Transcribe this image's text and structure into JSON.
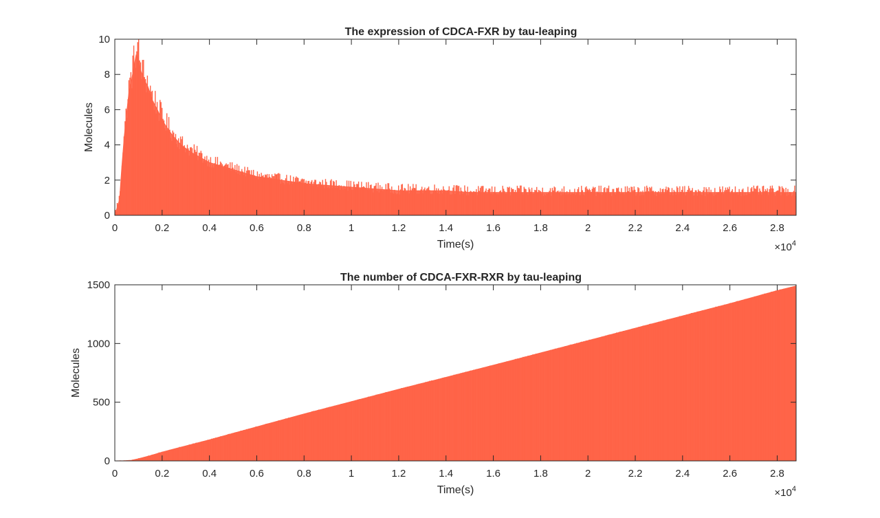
{
  "chart_data": [
    {
      "type": "line",
      "title": "The expression of CDCA-FXR by tau-leaping",
      "xlabel": "Time(s)",
      "ylabel": "Molecules",
      "xlim": [
        0,
        28800
      ],
      "ylim": [
        0,
        10
      ],
      "xticks": [
        0,
        2000,
        4000,
        6000,
        8000,
        10000,
        12000,
        14000,
        16000,
        18000,
        20000,
        22000,
        24000,
        26000,
        28000
      ],
      "xtick_labels": [
        "0",
        "0.2",
        "0.4",
        "0.6",
        "0.8",
        "1",
        "1.2",
        "1.4",
        "1.6",
        "1.8",
        "2",
        "2.2",
        "2.4",
        "2.6",
        "2.8"
      ],
      "yticks": [
        0,
        2,
        4,
        6,
        8,
        10
      ],
      "ytick_labels": [
        "0",
        "2",
        "4",
        "6",
        "8",
        "10"
      ],
      "x_exponent_base": "×10",
      "x_exponent_power": "4",
      "color": "#FF6347",
      "series": [
        {
          "name": "CDCA-FXR",
          "x": [
            0,
            200,
            300,
            400,
            500,
            600,
            700,
            800,
            900,
            1000,
            1100,
            1200,
            1400,
            1600,
            1800,
            2000,
            2400,
            2800,
            3200,
            3600,
            4000,
            4500,
            5000,
            5500,
            6000,
            6500,
            7000,
            8000,
            9000,
            10000,
            11000,
            12000,
            13000,
            14000,
            15000,
            16000,
            17000,
            18000,
            19000,
            20000,
            21000,
            22000,
            23000,
            24000,
            25000,
            26000,
            27000,
            28000,
            28800
          ],
          "y": [
            0,
            0.9,
            2.8,
            4.5,
            5.8,
            7.0,
            7.6,
            8.4,
            9.1,
            8.9,
            8.2,
            7.8,
            7.3,
            6.5,
            6.0,
            5.4,
            4.6,
            4.0,
            3.6,
            3.3,
            3.0,
            2.8,
            2.6,
            2.4,
            2.2,
            2.1,
            2.0,
            1.8,
            1.7,
            1.6,
            1.5,
            1.4,
            1.4,
            1.4,
            1.3,
            1.3,
            1.3,
            1.3,
            1.3,
            1.3,
            1.3,
            1.3,
            1.3,
            1.3,
            1.3,
            1.3,
            1.3,
            1.3,
            1.3
          ]
        }
      ]
    },
    {
      "type": "line",
      "title": "The number of CDCA-FXR-RXR by tau-leaping",
      "xlabel": "Time(s)",
      "ylabel": "Molecules",
      "xlim": [
        0,
        28800
      ],
      "ylim": [
        0,
        1500
      ],
      "xticks": [
        0,
        2000,
        4000,
        6000,
        8000,
        10000,
        12000,
        14000,
        16000,
        18000,
        20000,
        22000,
        24000,
        26000,
        28000
      ],
      "xtick_labels": [
        "0",
        "0.2",
        "0.4",
        "0.6",
        "0.8",
        "1",
        "1.2",
        "1.4",
        "1.6",
        "1.8",
        "2",
        "2.2",
        "2.4",
        "2.6",
        "2.8"
      ],
      "yticks": [
        0,
        500,
        1000,
        1500
      ],
      "ytick_labels": [
        "0",
        "500",
        "1000",
        "1500"
      ],
      "x_exponent_base": "×10",
      "x_exponent_power": "4",
      "color": "#FF6347",
      "series": [
        {
          "name": "CDCA-FXR-RXR",
          "x": [
            0,
            400,
            700,
            1000,
            1500,
            2000,
            3000,
            4000,
            6000,
            8000,
            10000,
            12000,
            14000,
            16000,
            18000,
            20000,
            22000,
            24000,
            26000,
            28000,
            28800
          ],
          "y": [
            0,
            1,
            5,
            18,
            45,
            75,
            128,
            180,
            290,
            400,
            505,
            610,
            712,
            815,
            920,
            1025,
            1130,
            1235,
            1340,
            1450,
            1490
          ]
        }
      ]
    }
  ]
}
